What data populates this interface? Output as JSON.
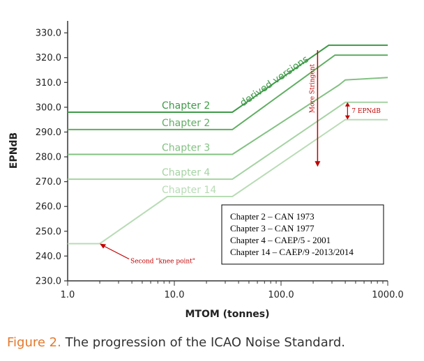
{
  "chart_data": {
    "type": "line",
    "title": "",
    "xlabel": "MTOM (tonnes)",
    "ylabel": "EPNdB",
    "x_scale": "log",
    "xlim": [
      1.0,
      1000.0
    ],
    "ylim": [
      230.0,
      332.0
    ],
    "x_ticks": [
      1.0,
      10.0,
      100.0,
      1000.0
    ],
    "x_tick_labels": [
      "1.0",
      "10.0",
      "100.0",
      "1000.0"
    ],
    "y_ticks": [
      230,
      240,
      250,
      260,
      270,
      280,
      290,
      300,
      310,
      320,
      330
    ],
    "y_tick_labels": [
      "230.0",
      "240.0",
      "250.0",
      "260.0",
      "270.0",
      "280.0",
      "290.0",
      "300.0",
      "310.0",
      "320.0",
      "330.0"
    ],
    "grid": false,
    "series": [
      {
        "name": "Chapter 2",
        "label": "Chapter 2",
        "color": "#3e9a48",
        "points": [
          [
            1.0,
            298.0
          ],
          [
            35.0,
            298.0
          ],
          [
            280.0,
            325.0
          ],
          [
            1000.0,
            325.0
          ]
        ]
      },
      {
        "name": "Chapter 2",
        "label": "Chapter 2",
        "color": "#5fae62",
        "points": [
          [
            1.0,
            291.0
          ],
          [
            35.0,
            291.0
          ],
          [
            320.0,
            321.0
          ],
          [
            1000.0,
            321.0
          ]
        ]
      },
      {
        "name": "Chapter 3",
        "label": "Chapter 3",
        "color": "#82c182",
        "points": [
          [
            1.0,
            281.0
          ],
          [
            35.0,
            281.0
          ],
          [
            350.0,
            309.0
          ],
          [
            400.0,
            311.0
          ],
          [
            1000.0,
            312.0
          ]
        ]
      },
      {
        "name": "Chapter 4",
        "label": "Chapter 4",
        "color": "#a5d3a3",
        "points": [
          [
            1.0,
            271.0
          ],
          [
            35.0,
            271.0
          ],
          [
            400.0,
            302.0
          ],
          [
            1000.0,
            302.0
          ]
        ]
      },
      {
        "name": "Chapter 14",
        "label": "Chapter 14",
        "color": "#b8dcb5",
        "points": [
          [
            1.0,
            245.0
          ],
          [
            2.0,
            245.0
          ],
          [
            8.6,
            264.0
          ],
          [
            35.0,
            264.0
          ],
          [
            400.0,
            295.0
          ],
          [
            1000.0,
            295.0
          ]
        ]
      }
    ],
    "annotations": {
      "derived_versions": {
        "text": "derived versions",
        "color": "#3e9a48"
      },
      "more_stringent": {
        "text": "More Stringent",
        "x": 220.0,
        "y_from": 323.0,
        "y_to": 276.0,
        "color": "#c00000"
      },
      "difference": {
        "text": "7 EPNdB",
        "x": 420.0,
        "y_from": 302.0,
        "y_to": 295.0,
        "color": "#c00000"
      },
      "knee_point": {
        "text": "Second \"knee point\"",
        "x": 2.0,
        "y": 245.0,
        "color": "#c00000"
      }
    },
    "legend_box": {
      "placement": "bottom-right",
      "entries": [
        "Chapter 2 – CAN 1973",
        "Chapter 3 – CAN 1977",
        "Chapter 4 – CAEP/5 - 2001",
        "Chapter 14 – CAEP/9 -2013/2014"
      ]
    }
  },
  "caption": {
    "figure_label": "Figure 2.",
    "text": "The progression of the ICAO Noise Standard."
  }
}
